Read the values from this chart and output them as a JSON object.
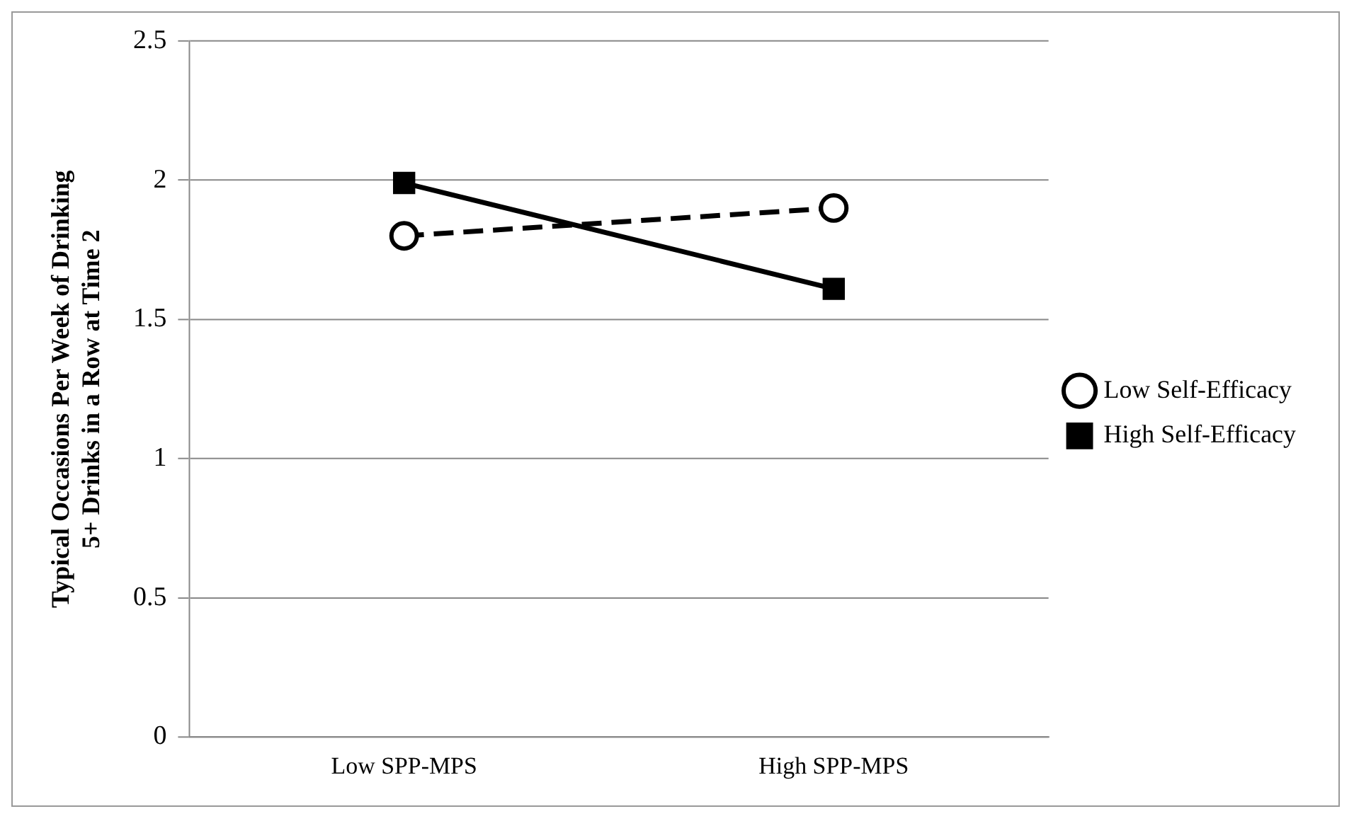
{
  "chart_data": {
    "type": "line",
    "ylabel": "Typical Occasions Per Week of Drinking 5+ Drinks in a Row at Time 2",
    "categories": [
      "Low SPP-MPS",
      "High SPP-MPS"
    ],
    "series": [
      {
        "name": "Low Self-Efficacy",
        "color": "#000000",
        "values": [
          1.8,
          1.9
        ],
        "marker": "circle",
        "line_style": "dashed"
      },
      {
        "name": "High Self-Efficacy",
        "color": "#000000",
        "values": [
          1.99,
          1.61
        ],
        "marker": "square",
        "line_style": "solid"
      }
    ],
    "ylim": [
      0,
      2.5
    ],
    "yticks": [
      0,
      0.5,
      1,
      1.5,
      2,
      2.5
    ],
    "grid": "y",
    "legend": "right"
  }
}
